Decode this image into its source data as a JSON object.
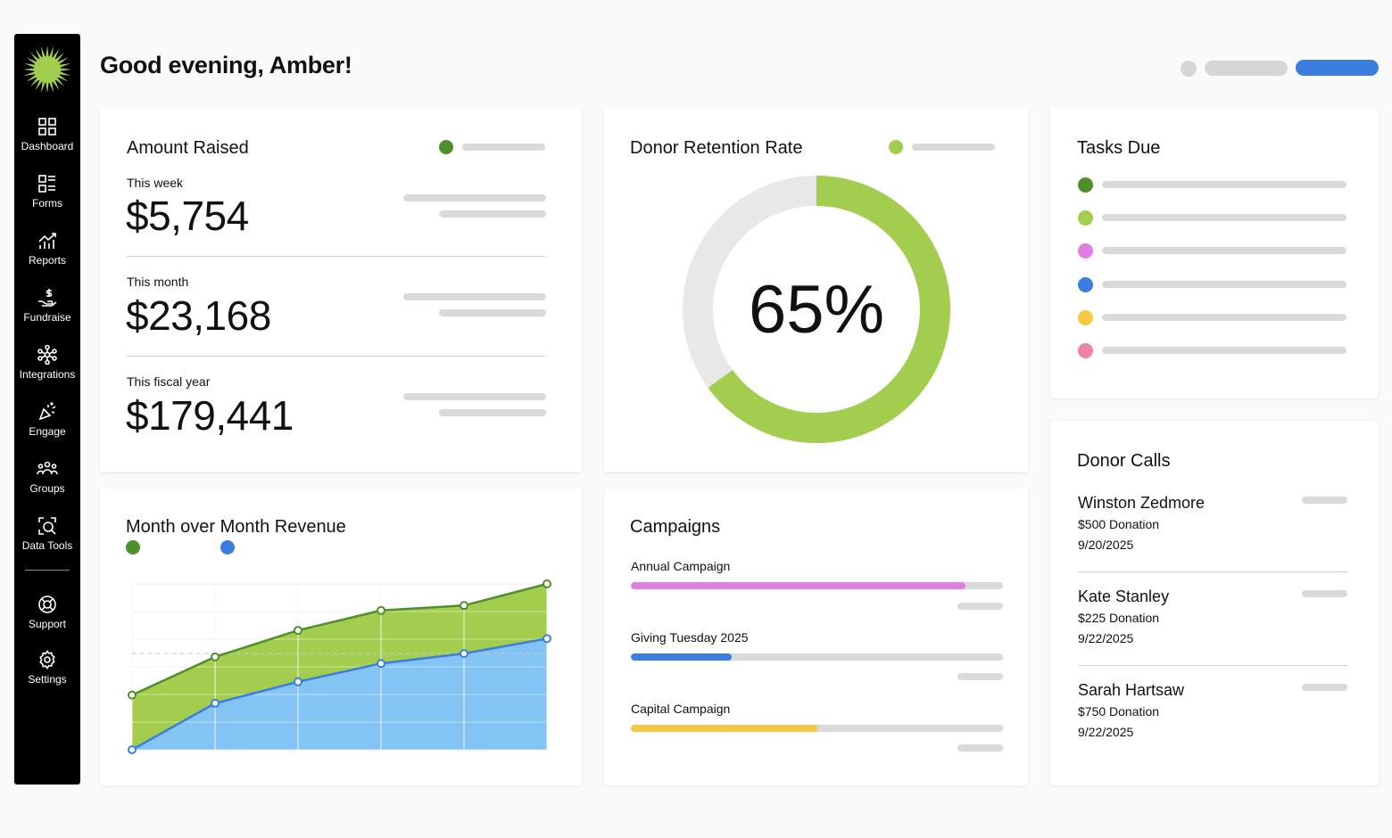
{
  "header": {
    "greeting": "Good evening, Amber!"
  },
  "colors": {
    "dark_green": "#4f8f2a",
    "light_green": "#a3cd4e",
    "blue": "#3c7ee0",
    "light_blue": "#84c4f4",
    "pink": "#e27de2",
    "yellow": "#f6c945",
    "rose": "#ec82a6"
  },
  "sidebar": {
    "items": [
      {
        "label": "Dashboard",
        "icon": "grid-icon"
      },
      {
        "label": "Forms",
        "icon": "form-list-icon"
      },
      {
        "label": "Reports",
        "icon": "chart-icon"
      },
      {
        "label": "Fundraise",
        "icon": "hand-dollar-icon"
      },
      {
        "label": "Integrations",
        "icon": "network-icon"
      },
      {
        "label": "Engage",
        "icon": "megaphone-icon"
      },
      {
        "label": "Groups",
        "icon": "people-icon"
      },
      {
        "label": "Data Tools",
        "icon": "data-search-icon"
      },
      {
        "label": "Support",
        "icon": "lifebuoy-icon"
      },
      {
        "label": "Settings",
        "icon": "gear-icon"
      }
    ]
  },
  "amount_raised": {
    "title": "Amount Raised",
    "rows": [
      {
        "label": "This week",
        "value": "$5,754"
      },
      {
        "label": "This month",
        "value": "$23,168"
      },
      {
        "label": "This fiscal year",
        "value": "$179,441"
      }
    ]
  },
  "donor_retention": {
    "title": "Donor Retention Rate",
    "value_text": "65%",
    "percent": 65
  },
  "tasks_due": {
    "title": "Tasks Due",
    "dots": [
      "#4f8f2a",
      "#a3cd4e",
      "#e27de2",
      "#3c7ee0",
      "#f6c945",
      "#ec82a6"
    ]
  },
  "revenue": {
    "title": "Month over Month Revenue"
  },
  "chart_data": {
    "type": "area",
    "title": "Month over Month Revenue",
    "x": [
      1,
      2,
      3,
      4,
      5,
      6
    ],
    "ylim": [
      0,
      10
    ],
    "grid": true,
    "series": [
      {
        "color": "#4f8f2a",
        "fill": "#a3cd4e",
        "values": [
          3.3,
          5.6,
          7.2,
          8.4,
          8.7,
          10.0
        ]
      },
      {
        "color": "#3c7ee0",
        "fill": "#84c4f4",
        "values": [
          0.0,
          2.8,
          4.1,
          5.2,
          5.8,
          6.7
        ]
      }
    ]
  },
  "campaigns": {
    "title": "Campaigns",
    "items": [
      {
        "name": "Annual Campaign",
        "progress": 0.9,
        "color": "#e27de2"
      },
      {
        "name": "Giving Tuesday 2025",
        "progress": 0.27,
        "color": "#3c7ee0"
      },
      {
        "name": "Capital Campaign",
        "progress": 0.5,
        "color": "#f6c945"
      }
    ]
  },
  "donor_calls": {
    "title": "Donor Calls",
    "items": [
      {
        "name": "Winston Zedmore",
        "amount": "$500 Donation",
        "date": "9/20/2025"
      },
      {
        "name": "Kate Stanley",
        "amount": "$225 Donation",
        "date": "9/22/2025"
      },
      {
        "name": "Sarah Hartsaw",
        "amount": "$750 Donation",
        "date": "9/22/2025"
      }
    ]
  }
}
